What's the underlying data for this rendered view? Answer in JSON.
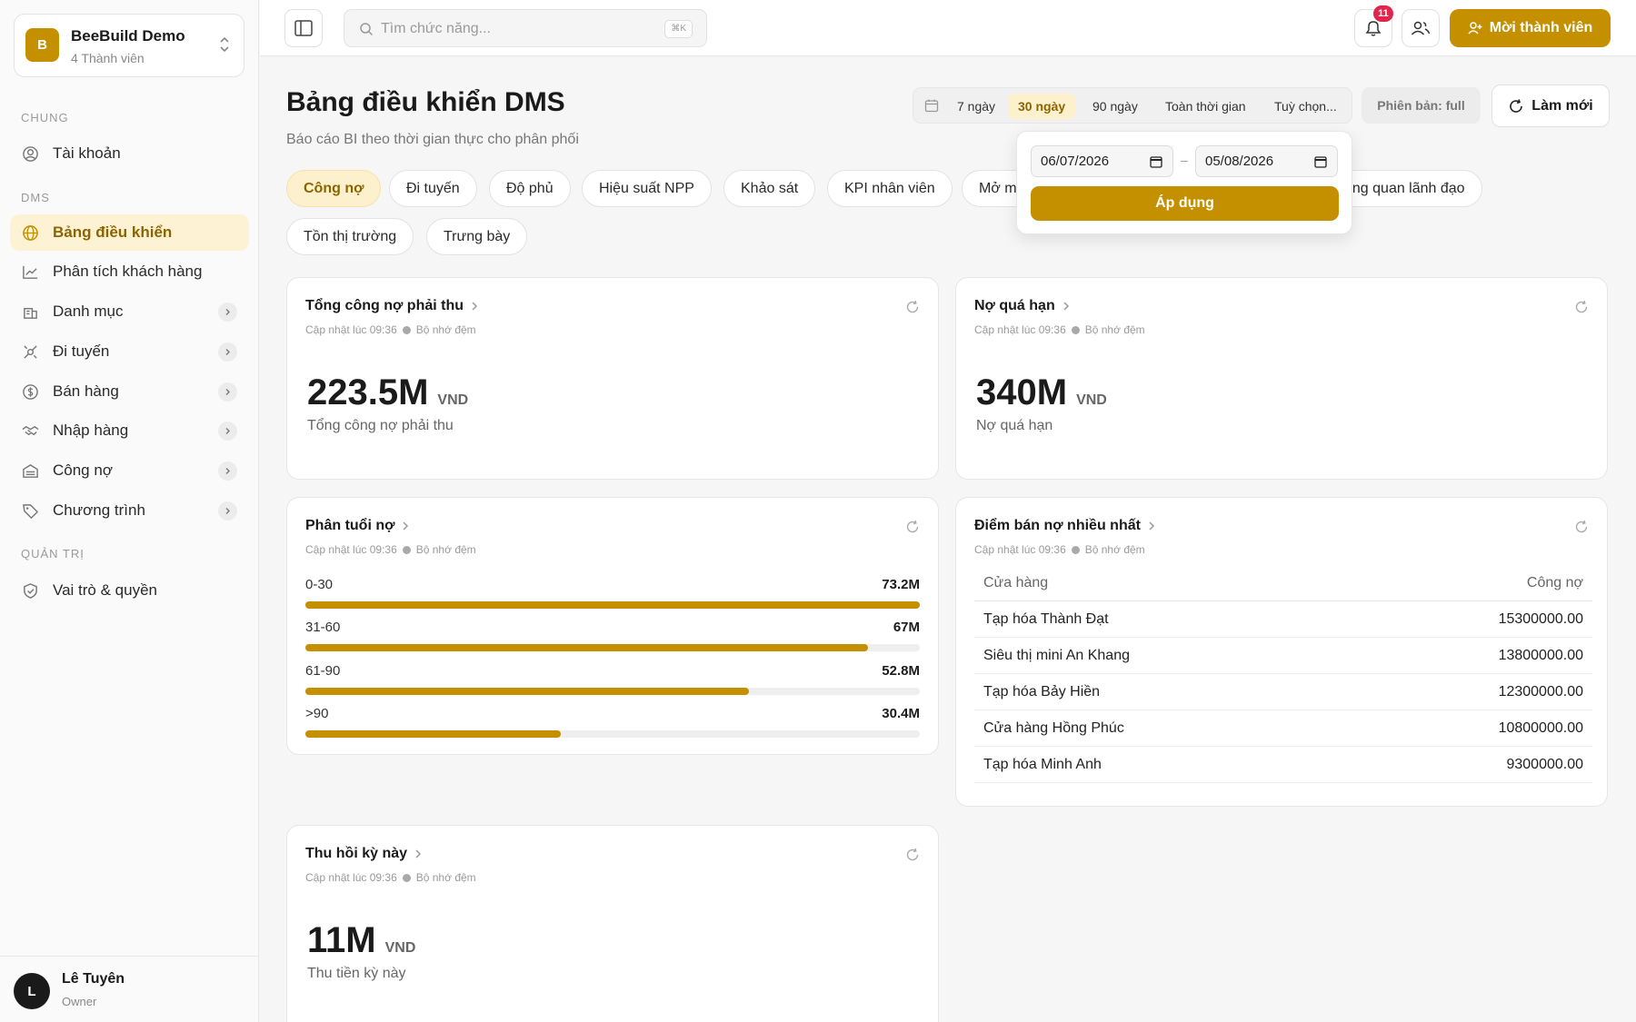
{
  "org": {
    "initial": "B",
    "name": "BeeBuild Demo",
    "members": "4 Thành viên"
  },
  "sidebar": {
    "sections": {
      "general": "CHUNG",
      "dms": "DMS",
      "admin": "QUẢN TRỊ"
    },
    "items": [
      {
        "label": "Tài khoản",
        "icon": "user-circle-icon"
      },
      {
        "label": "Bảng điều khiển",
        "icon": "globe-icon",
        "active": true
      },
      {
        "label": "Phân tích khách hàng",
        "icon": "chart-line-icon"
      },
      {
        "label": "Danh mục",
        "icon": "building-icon"
      },
      {
        "label": "Đi tuyến",
        "icon": "route-icon"
      },
      {
        "label": "Bán hàng",
        "icon": "dollar-circle-icon"
      },
      {
        "label": "Nhập hàng",
        "icon": "handshake-icon"
      },
      {
        "label": "Công nợ",
        "icon": "warehouse-icon"
      },
      {
        "label": "Chương trình",
        "icon": "tag-icon"
      },
      {
        "label": "Vai trò & quyền",
        "icon": "shield-check-icon"
      }
    ]
  },
  "user": {
    "initial": "L",
    "name": "Lê Tuyên",
    "role": "Owner"
  },
  "topbar": {
    "search_placeholder": "Tìm chức năng...",
    "search_shortcut": "⌘K",
    "notifications": "11",
    "invite_label": "Mời thành viên"
  },
  "header": {
    "title": "Bảng điều khiển DMS",
    "subtitle": "Báo cáo BI theo thời gian thực cho phân phối",
    "ranges": [
      "7 ngày",
      "30 ngày",
      "90 ngày",
      "Toàn thời gian",
      "Tuỳ chọn..."
    ],
    "active_range": "30 ngày",
    "version": "Phiên bản: full",
    "refresh_label": "Làm mới"
  },
  "date_popup": {
    "from": "06/07/2026",
    "to": "05/08/2026",
    "separator": "–",
    "apply": "Áp dụng"
  },
  "tabs": [
    "Công nợ",
    "Đi tuyến",
    "Độ phủ",
    "Hiệu suất NPP",
    "Khảo sát",
    "KPI nhân viên",
    "Mở m",
    "ổng quan lãnh đạo",
    "Tồn thị trường",
    "Trưng bày"
  ],
  "meta": {
    "updated": "Cập nhật lúc 09:36",
    "cache": "Bộ nhớ đệm"
  },
  "cards": {
    "receivable": {
      "title": "Tổng công nợ phải thu",
      "value": "223.5M",
      "unit": "VND",
      "label": "Tổng công nợ phải thu"
    },
    "overdue": {
      "title": "Nợ quá hạn",
      "value": "340M",
      "unit": "VND",
      "label": "Nợ quá hạn"
    },
    "aging": {
      "title": "Phân tuổi nợ",
      "rows": [
        {
          "label": "0-30",
          "value": "73.2M",
          "amount": 73.2
        },
        {
          "label": "31-60",
          "value": "67M",
          "amount": 67
        },
        {
          "label": "61-90",
          "value": "52.8M",
          "amount": 52.8
        },
        {
          "label": ">90",
          "value": "30.4M",
          "amount": 30.4
        }
      ]
    },
    "top_debtors": {
      "title": "Điểm bán nợ nhiều nhất",
      "col_store": "Cửa hàng",
      "col_debt": "Công nợ",
      "rows": [
        {
          "store": "Tạp hóa Thành Đạt",
          "debt": "15300000.00"
        },
        {
          "store": "Siêu thị mini An Khang",
          "debt": "13800000.00"
        },
        {
          "store": "Tạp hóa Bảy Hiền",
          "debt": "12300000.00"
        },
        {
          "store": "Cửa hàng Hồng Phúc",
          "debt": "10800000.00"
        },
        {
          "store": "Tạp hóa Minh Anh",
          "debt": "9300000.00"
        }
      ]
    },
    "collection": {
      "title": "Thu hồi kỳ này",
      "value": "11M",
      "unit": "VND",
      "label": "Thu tiền kỳ này"
    }
  },
  "colors": {
    "accent": "#c49000",
    "accent_soft": "#fdf0cc",
    "badge": "#e0264d"
  }
}
